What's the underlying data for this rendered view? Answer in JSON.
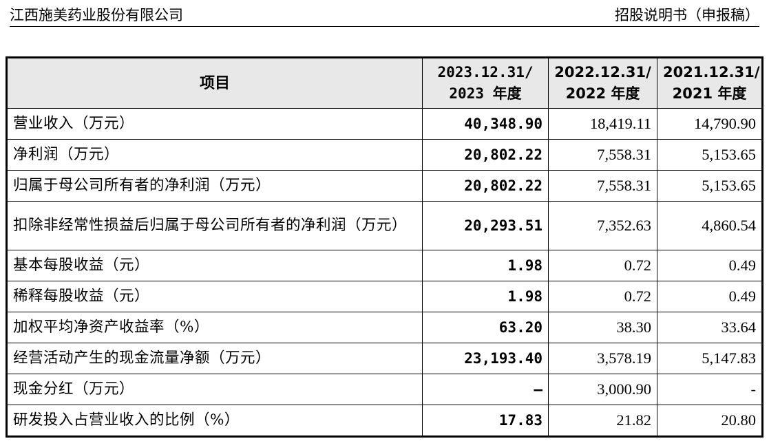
{
  "header": {
    "company": "江西施美药业股份有限公司",
    "doc_type": "招股说明书（申报稿）"
  },
  "table": {
    "columns": [
      {
        "line1": "项目",
        "line2": ""
      },
      {
        "line1": "2023.12.31/",
        "line2": "2023 年度"
      },
      {
        "line1": "2022.12.31/",
        "line2": "2022 年度"
      },
      {
        "line1": "2021.12.31/",
        "line2": "2021 年度"
      }
    ],
    "rows": [
      {
        "label": "营业收入（万元）",
        "v2023": "40,348.90",
        "v2022": "18,419.11",
        "v2021": "14,790.90"
      },
      {
        "label": "净利润（万元）",
        "v2023": "20,802.22",
        "v2022": "7,558.31",
        "v2021": "5,153.65"
      },
      {
        "label": "归属于母公司所有者的净利润（万元）",
        "v2023": "20,802.22",
        "v2022": "7,558.31",
        "v2021": "5,153.65"
      },
      {
        "label": "扣除非经常性损益后归属于母公司所有者的净利润（万元）",
        "v2023": "20,293.51",
        "v2022": "7,352.63",
        "v2021": "4,860.54"
      },
      {
        "label": "基本每股收益（元）",
        "v2023": "1.98",
        "v2022": "0.72",
        "v2021": "0.49"
      },
      {
        "label": "稀释每股收益（元）",
        "v2023": "1.98",
        "v2022": "0.72",
        "v2021": "0.49"
      },
      {
        "label": "加权平均净资产收益率（%）",
        "v2023": "63.20",
        "v2022": "38.30",
        "v2021": "33.64"
      },
      {
        "label": "经营活动产生的现金流量净额（万元）",
        "v2023": "23,193.40",
        "v2022": "3,578.19",
        "v2021": "5,147.83"
      },
      {
        "label": "现金分红（万元）",
        "v2023": "–",
        "v2022": "3,000.90",
        "v2021": "-"
      },
      {
        "label": "研发投入占营业收入的比例（%）",
        "v2023": "17.83",
        "v2022": "21.82",
        "v2021": "20.80"
      }
    ]
  }
}
